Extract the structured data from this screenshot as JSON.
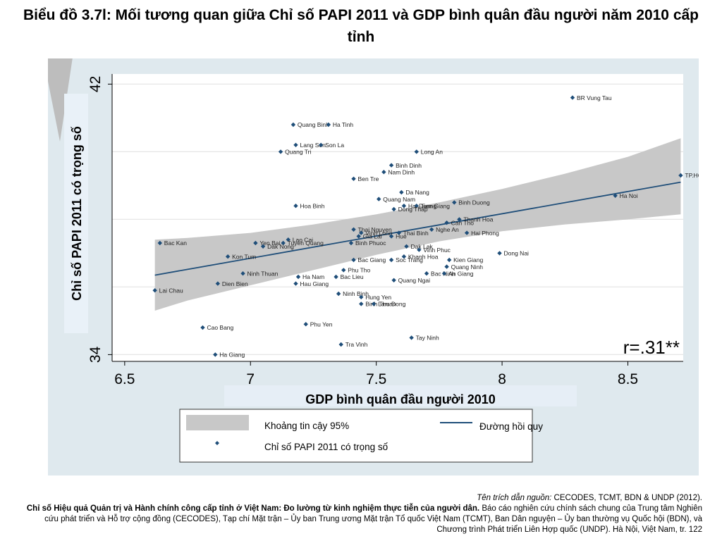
{
  "title": "Biểu đồ 3.7l: Mối tương quan giữa Chỉ số PAPI 2011 và GDP bình quân đầu người năm 2010 cấp tỉnh",
  "colors": {
    "panel_bg": "#dfe9ee",
    "plot_bg": "#ffffff",
    "marker": "#1f4e79",
    "line": "#1f4e79",
    "ci_band": "#c8c8c8"
  },
  "chart_data": {
    "type": "scatter",
    "title": "Biểu đồ 3.7l: Mối tương quan giữa Chỉ số PAPI 2011 và GDP bình quân đầu người năm 2010 cấp tỉnh",
    "xlabel": "GDP bình quân đầu người 2010",
    "ylabel": "Chỉ số PAPI 2011 có trọng số",
    "xlim": [
      6.45,
      8.72
    ],
    "ylim": [
      33.8,
      42.3
    ],
    "xticks": [
      "6.5",
      "7",
      "7.5",
      "8",
      "8.5"
    ],
    "xtick_values": [
      6.5,
      7,
      7.5,
      8,
      8.5
    ],
    "yticks": [
      "34",
      "42"
    ],
    "ytick_values": [
      34,
      42
    ],
    "ygrid_values": [
      34,
      36,
      38,
      40,
      42
    ],
    "grid": true,
    "annotation": "r=.31**",
    "points": [
      {
        "label": "BR Vung Tau",
        "x": 8.28,
        "y": 41.6
      },
      {
        "label": "TP.HCM",
        "x": 8.71,
        "y": 39.3
      },
      {
        "label": "Ha Noi",
        "x": 8.45,
        "y": 38.7
      },
      {
        "label": "Quang Binh",
        "x": 7.17,
        "y": 40.8
      },
      {
        "label": "Ha Tinh",
        "x": 7.31,
        "y": 40.8
      },
      {
        "label": "Lang Son",
        "x": 7.18,
        "y": 40.2
      },
      {
        "label": "Son La",
        "x": 7.28,
        "y": 40.2
      },
      {
        "label": "Quang Tri",
        "x": 7.12,
        "y": 40.0
      },
      {
        "label": "Long An",
        "x": 7.66,
        "y": 40.0
      },
      {
        "label": "Binh Dinh",
        "x": 7.56,
        "y": 39.6
      },
      {
        "label": "Nam Dinh",
        "x": 7.53,
        "y": 39.4
      },
      {
        "label": "Ben Tre",
        "x": 7.41,
        "y": 39.2
      },
      {
        "label": "Da Nang",
        "x": 7.6,
        "y": 38.8
      },
      {
        "label": "Quang Nam",
        "x": 7.51,
        "y": 38.6
      },
      {
        "label": "Hoa Binh",
        "x": 7.18,
        "y": 38.4
      },
      {
        "label": "Binh Duong",
        "x": 7.81,
        "y": 38.5
      },
      {
        "label": "Hai Duong",
        "x": 7.61,
        "y": 38.4
      },
      {
        "label": "Tien Giang",
        "x": 7.66,
        "y": 38.4
      },
      {
        "label": "Dong Thap",
        "x": 7.57,
        "y": 38.3
      },
      {
        "label": "Thanh Hoa",
        "x": 7.83,
        "y": 38.0
      },
      {
        "label": "Can Tho",
        "x": 7.78,
        "y": 37.9
      },
      {
        "label": "Nghe An",
        "x": 7.72,
        "y": 37.7
      },
      {
        "label": "Hai Phong",
        "x": 7.86,
        "y": 37.6
      },
      {
        "label": "Thai Nguyen",
        "x": 7.41,
        "y": 37.7
      },
      {
        "label": "Vinh Long",
        "x": 7.44,
        "y": 37.6
      },
      {
        "label": "Thai Binh",
        "x": 7.59,
        "y": 37.6
      },
      {
        "label": "Bac Kan",
        "x": 6.64,
        "y": 37.3
      },
      {
        "label": "Yen Bai",
        "x": 7.02,
        "y": 37.3
      },
      {
        "label": "Lao Cai",
        "x": 7.15,
        "y": 37.4
      },
      {
        "label": "Tuyen Quang",
        "x": 7.13,
        "y": 37.3
      },
      {
        "label": "Dak Nong",
        "x": 7.05,
        "y": 37.2
      },
      {
        "label": "Binh Phuoc",
        "x": 7.4,
        "y": 37.3
      },
      {
        "label": "Gia Lai",
        "x": 7.43,
        "y": 37.5
      },
      {
        "label": "Hue",
        "x": 7.56,
        "y": 37.5
      },
      {
        "label": "Dak Lak",
        "x": 7.62,
        "y": 37.2
      },
      {
        "label": "Vinh Phuc",
        "x": 7.67,
        "y": 37.1
      },
      {
        "label": "Dong Nai",
        "x": 7.99,
        "y": 37.0
      },
      {
        "label": "Kon Tum",
        "x": 6.91,
        "y": 36.9
      },
      {
        "label": "Bac Giang",
        "x": 7.41,
        "y": 36.8
      },
      {
        "label": "Soc Trang",
        "x": 7.56,
        "y": 36.8
      },
      {
        "label": "Khanh Hoa",
        "x": 7.61,
        "y": 36.9
      },
      {
        "label": "Kien Giang",
        "x": 7.79,
        "y": 36.8
      },
      {
        "label": "Quang Ninh",
        "x": 7.78,
        "y": 36.6
      },
      {
        "label": "Phu Tho",
        "x": 7.37,
        "y": 36.5
      },
      {
        "label": "Bac Ninh",
        "x": 7.7,
        "y": 36.4
      },
      {
        "label": "An Giang",
        "x": 7.77,
        "y": 36.4
      },
      {
        "label": "Ninh Thuan",
        "x": 6.97,
        "y": 36.4
      },
      {
        "label": "Ha Nam",
        "x": 7.19,
        "y": 36.3
      },
      {
        "label": "Bac Lieu",
        "x": 7.34,
        "y": 36.3
      },
      {
        "label": "Quang Ngai",
        "x": 7.57,
        "y": 36.2
      },
      {
        "label": "Dien Bien",
        "x": 6.87,
        "y": 36.1
      },
      {
        "label": "Hau Giang",
        "x": 7.18,
        "y": 36.1
      },
      {
        "label": "Lai Chau",
        "x": 6.62,
        "y": 35.9
      },
      {
        "label": "Ninh Binh",
        "x": 7.35,
        "y": 35.8
      },
      {
        "label": "Hung Yen",
        "x": 7.44,
        "y": 35.7
      },
      {
        "label": "Binh Thuan",
        "x": 7.44,
        "y": 35.5
      },
      {
        "label": "Lam Dong",
        "x": 7.49,
        "y": 35.5
      },
      {
        "label": "Phu Yen",
        "x": 7.22,
        "y": 34.9
      },
      {
        "label": "Cao Bang",
        "x": 6.81,
        "y": 34.8
      },
      {
        "label": "Tay Ninh",
        "x": 7.64,
        "y": 34.5
      },
      {
        "label": "Tra Vinh",
        "x": 7.36,
        "y": 34.3
      },
      {
        "label": "Ha Giang",
        "x": 6.86,
        "y": 34.0
      }
    ],
    "regression": {
      "x": [
        6.62,
        8.71
      ],
      "y": [
        36.35,
        39.1
      ]
    },
    "ci_band": {
      "x": [
        6.62,
        6.75,
        7.0,
        7.25,
        7.5,
        7.75,
        8.0,
        8.25,
        8.5,
        8.71
      ],
      "upper": [
        37.4,
        37.45,
        37.6,
        37.85,
        38.15,
        38.5,
        38.9,
        39.35,
        39.85,
        40.4
      ],
      "lower": [
        35.3,
        35.6,
        36.05,
        36.5,
        36.95,
        37.35,
        37.65,
        37.85,
        38.0,
        38.15
      ]
    },
    "legend": {
      "placement": "bottom",
      "ci": "Khoảng tin cậy 95%",
      "regression": "Đường hồi quy",
      "points": "Chỉ số PAPI 2011 có trọng số"
    }
  },
  "citation": {
    "source_label": "Tên trích dẫn nguồn:",
    "source_text": " CECODES, TCMT, BDN & UNDP (2012).",
    "report_title": "Chỉ số Hiệu quả Quản trị và Hành chính công cấp tỉnh ở Việt Nam: Đo lường từ kinh nghiệm thực tiễn của người dân.",
    "report_rest": " Báo cáo nghiên cứu chính sách chung của Trung tâm Nghiên cứu phát triển và Hỗ trợ cộng đồng (CECODES), Tạp chí Mặt trận – Ủy ban Trung ương Mặt trận Tổ quốc Việt Nam (TCMT), Ban Dân nguyện – Ủy ban thường vụ Quốc hội (BDN), và Chương trình Phát triển Liên Hợp quốc (UNDP). Hà Nội, Việt Nam, tr. 122"
  }
}
